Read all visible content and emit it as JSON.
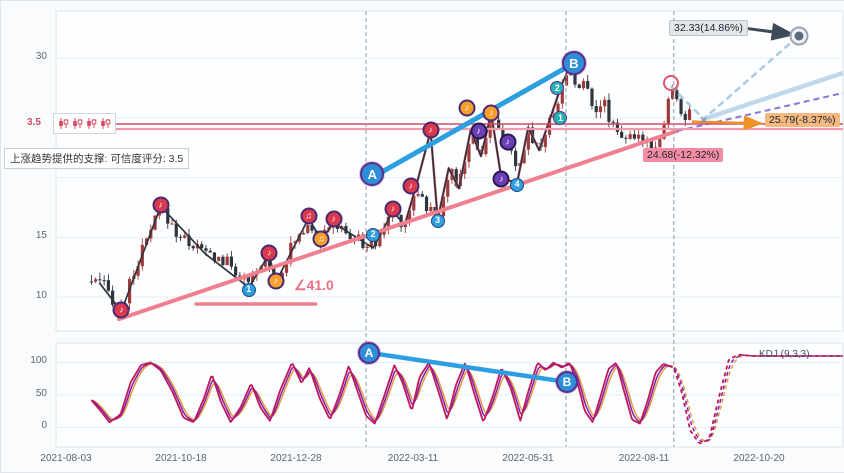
{
  "axes": {
    "main_yticks": [
      "30",
      "15",
      "10"
    ],
    "kdj_yticks": [
      "100",
      "50",
      "0"
    ],
    "dates": [
      "2021-08-03",
      "2021-10-18",
      "2021-12-28",
      "2022-03-11",
      "2022-05-31",
      "2022-08-11",
      "2022-10-20"
    ]
  },
  "annotations": {
    "support_note": "上涨趋势提供的支撑: 可信度评分: 3.5",
    "score_badge": "3.5",
    "angle_label": "∠41.0",
    "kdj_label": "KDJ (9,3,3)",
    "pattern_icons": [
      "candle-pattern",
      "candle-pattern",
      "candle-pattern",
      "candle-pattern"
    ],
    "callouts": [
      {
        "text": "32.33(14.86%)",
        "kind": "target-up",
        "bg": "#e3e7ea"
      },
      {
        "text": "25.79(-8.37%)",
        "kind": "target-mid",
        "bg": "#f5b97f"
      },
      {
        "text": "24.68(-12.32%)",
        "kind": "target-down",
        "bg": "#f48ca4"
      }
    ]
  },
  "chart_data": {
    "type": "candlestick+kdj",
    "x_axis": {
      "labels": [
        "2021-08-03",
        "2021-10-18",
        "2021-12-28",
        "2022-03-11",
        "2022-05-31",
        "2022-08-11",
        "2022-10-20"
      ]
    },
    "vguides": {
      "fracs": [
        0.394,
        0.648,
        0.785
      ]
    },
    "main": {
      "ylim": [
        7.15,
        33.97
      ],
      "yticks": [
        10,
        15,
        30
      ],
      "grid": [
        10,
        15,
        20,
        25,
        30
      ],
      "resistance_level": 24.4,
      "support_score": 3.5,
      "price_targets": {
        "up": 32.33,
        "mid": 25.79,
        "down": 24.68
      },
      "candles": {
        "count": 142,
        "start": 0.045,
        "end": 0.805,
        "wiggle": 0.55,
        "up_color": "#9e3a3a",
        "down_color": "#2f353e"
      },
      "price_path": [
        [
          0.045,
          11.3
        ],
        [
          0.06,
          11.0
        ],
        [
          0.083,
          8.8
        ],
        [
          0.1,
          12.3
        ],
        [
          0.133,
          17.5
        ],
        [
          0.155,
          15.2
        ],
        [
          0.19,
          13.7
        ],
        [
          0.22,
          12.8
        ],
        [
          0.245,
          10.9
        ],
        [
          0.268,
          13.4
        ],
        [
          0.28,
          11.4
        ],
        [
          0.3,
          14.3
        ],
        [
          0.321,
          16.4
        ],
        [
          0.337,
          14.8
        ],
        [
          0.353,
          16.1
        ],
        [
          0.375,
          15.0
        ],
        [
          0.403,
          14.2
        ],
        [
          0.415,
          15.6
        ],
        [
          0.428,
          17.1
        ],
        [
          0.443,
          16.1
        ],
        [
          0.458,
          19.3
        ],
        [
          0.47,
          17.6
        ],
        [
          0.485,
          16.6
        ],
        [
          0.499,
          20.6
        ],
        [
          0.512,
          19.3
        ],
        [
          0.527,
          23.8
        ],
        [
          0.54,
          22.0
        ],
        [
          0.553,
          25.2
        ],
        [
          0.563,
          23.6
        ],
        [
          0.574,
          22.8
        ],
        [
          0.586,
          20.0
        ],
        [
          0.6,
          24.0
        ],
        [
          0.614,
          22.5
        ],
        [
          0.628,
          24.8
        ],
        [
          0.64,
          27.0
        ],
        [
          0.655,
          29.6
        ],
        [
          0.663,
          27.2
        ],
        [
          0.673,
          28.0
        ],
        [
          0.685,
          25.8
        ],
        [
          0.695,
          26.4
        ],
        [
          0.705,
          24.8
        ],
        [
          0.718,
          23.7
        ],
        [
          0.733,
          23.0
        ],
        [
          0.748,
          23.4
        ],
        [
          0.758,
          22.7
        ],
        [
          0.768,
          23.3
        ],
        [
          0.775,
          25.3
        ],
        [
          0.781,
          27.8
        ],
        [
          0.79,
          26.0
        ],
        [
          0.8,
          25.0
        ],
        [
          0.805,
          25.4
        ]
      ],
      "zigzag": {
        "stroke": "#2e333c",
        "w": 1.7,
        "pts": [
          [
            0.055,
            11.2
          ],
          [
            0.083,
            8.8
          ],
          [
            0.133,
            17.6
          ],
          [
            0.19,
            13.6
          ],
          [
            0.245,
            10.8
          ],
          [
            0.271,
            13.6
          ],
          [
            0.279,
            11.2
          ],
          [
            0.321,
            16.6
          ],
          [
            0.337,
            14.8
          ],
          [
            0.353,
            16.2
          ],
          [
            0.403,
            14.1
          ],
          [
            0.428,
            17.2
          ],
          [
            0.443,
            16.0
          ],
          [
            0.458,
            19.4
          ],
          [
            0.476,
            23.9
          ],
          [
            0.485,
            16.5
          ],
          [
            0.499,
            20.8
          ],
          [
            0.512,
            19.1
          ],
          [
            0.527,
            24.0
          ],
          [
            0.54,
            21.8
          ],
          [
            0.553,
            25.4
          ],
          [
            0.566,
            19.9
          ],
          [
            0.586,
            19.6
          ],
          [
            0.6,
            24.2
          ],
          [
            0.614,
            22.3
          ],
          [
            0.64,
            27.3
          ],
          [
            0.655,
            29.8
          ]
        ]
      },
      "pink_zigzag": {
        "stroke": "#ee7187",
        "w": 2.5,
        "pts": [
          [
            0.443,
            16.0
          ],
          [
            0.458,
            19.4
          ],
          [
            0.476,
            23.9
          ],
          [
            0.485,
            16.5
          ],
          [
            0.499,
            20.8
          ],
          [
            0.512,
            19.1
          ],
          [
            0.527,
            24.0
          ],
          [
            0.54,
            21.8
          ],
          [
            0.553,
            25.4
          ],
          [
            0.566,
            19.9
          ],
          [
            0.586,
            19.6
          ],
          [
            0.6,
            24.2
          ],
          [
            0.614,
            22.3
          ],
          [
            0.64,
            27.3
          ]
        ]
      },
      "overlays": [
        {
          "name": "support-trendline",
          "pts": [
            [
              0.08,
              8.15
            ],
            [
              0.789,
              23.91
            ]
          ],
          "stroke": "#f0808f",
          "w": 4,
          "cap": "round"
        },
        {
          "name": "support-extension-dashed",
          "pts": [
            [
              0.789,
              23.91
            ],
            [
              1.0,
              27.1
            ]
          ],
          "stroke": "#8678d8",
          "w": 2,
          "dash": "6 4"
        },
        {
          "name": "resistance-line-upper",
          "pts": [
            [
              0.0,
              24.5
            ],
            [
              1.0,
              24.5
            ]
          ],
          "stroke": "#d84a63",
          "w": 1.4
        },
        {
          "name": "resistance-line-lower",
          "pts": [
            [
              0.0,
              24.08
            ],
            [
              1.0,
              24.08
            ]
          ],
          "stroke": "#f29aab",
          "w": 2.2
        },
        {
          "name": "angle-baseline",
          "pts": [
            [
              0.178,
              9.41
            ],
            [
              0.33,
              9.41
            ]
          ],
          "stroke": "#f0808f",
          "w": 3.5,
          "cap": "round"
        },
        {
          "name": "ab-trendline",
          "pts": [
            [
              0.403,
              20.06
            ],
            [
              0.658,
              29.6
            ]
          ],
          "stroke": "#2b9fe0",
          "w": 5,
          "cap": "round"
        },
        {
          "name": "projection-zigzag-dashed",
          "pts": [
            [
              0.781,
              27.68
            ],
            [
              0.823,
              24.92
            ],
            [
              0.944,
              31.9
            ]
          ],
          "stroke": "#a9cce6",
          "w": 2.5,
          "dash": "7 4"
        },
        {
          "name": "projection-channel-thick",
          "pts": [
            [
              0.823,
              24.92
            ],
            [
              1.0,
              28.77
            ]
          ],
          "stroke": "#bfd8ec",
          "w": 4.5
        },
        {
          "name": "target-mid-arrow",
          "pts": [
            [
              0.808,
              24.7
            ],
            [
              0.896,
              24.55
            ]
          ],
          "stroke": "#ef9227",
          "w": 2.5,
          "arrow": true
        },
        {
          "name": "target-up-arrow",
          "pts": [
            [
              0.873,
              32.55
            ],
            [
              0.936,
              32.0
            ]
          ],
          "stroke": "#3d4a57",
          "w": 3,
          "arrow": true
        }
      ],
      "markers": [
        {
          "f": 0.083,
          "p": 8.9,
          "kind": "note-red",
          "glyph": "♪",
          "name": "pivot-low-1"
        },
        {
          "f": 0.133,
          "p": 17.7,
          "kind": "note-red",
          "glyph": "♪",
          "name": "pivot-high-1"
        },
        {
          "f": 0.245,
          "p": 10.6,
          "kind": "num-blue",
          "glyph": "1",
          "name": "wave-point-1"
        },
        {
          "f": 0.271,
          "p": 13.7,
          "kind": "note-red",
          "glyph": "♪",
          "name": "pivot-high-2"
        },
        {
          "f": 0.279,
          "p": 11.3,
          "kind": "note-orange",
          "glyph": "♪",
          "name": "pivot-low-2"
        },
        {
          "f": 0.321,
          "p": 16.8,
          "kind": "note-red",
          "glyph": "♫",
          "name": "pivot-high-3"
        },
        {
          "f": 0.337,
          "p": 14.9,
          "kind": "note-orange",
          "glyph": "♫",
          "name": "pivot-low-3"
        },
        {
          "f": 0.353,
          "p": 16.5,
          "kind": "note-red",
          "glyph": "♪",
          "name": "pivot-high-4"
        },
        {
          "f": 0.403,
          "p": 15.2,
          "kind": "num-blue",
          "glyph": "2",
          "name": "wave-point-2"
        },
        {
          "f": 0.402,
          "p": 20.3,
          "kind": "big-blue",
          "glyph": "A",
          "name": "wave-label-a"
        },
        {
          "f": 0.428,
          "p": 17.4,
          "kind": "note-red",
          "glyph": "♪",
          "name": "pivot-high-5"
        },
        {
          "f": 0.451,
          "p": 19.3,
          "kind": "note-red",
          "glyph": "♪",
          "name": "pivot-high-6"
        },
        {
          "f": 0.476,
          "p": 24.0,
          "kind": "note-red",
          "glyph": "♪",
          "name": "pivot-high-7"
        },
        {
          "f": 0.485,
          "p": 16.4,
          "kind": "num-blue",
          "glyph": "3",
          "name": "wave-point-3"
        },
        {
          "f": 0.522,
          "p": 25.8,
          "kind": "note-orange",
          "glyph": "♪",
          "name": "pivot-high-8"
        },
        {
          "f": 0.537,
          "p": 23.9,
          "kind": "note-purple",
          "glyph": "♪",
          "name": "pivot-mid-1"
        },
        {
          "f": 0.553,
          "p": 25.4,
          "kind": "note-orange",
          "glyph": "♪",
          "name": "pivot-high-9"
        },
        {
          "f": 0.566,
          "p": 19.9,
          "kind": "note-purple",
          "glyph": "♪",
          "name": "pivot-low-4"
        },
        {
          "f": 0.574,
          "p": 23.0,
          "kind": "note-purple",
          "glyph": "♪",
          "name": "pivot-mid-2"
        },
        {
          "f": 0.586,
          "p": 19.4,
          "kind": "num-blue",
          "glyph": "4",
          "name": "wave-point-4"
        },
        {
          "f": 0.637,
          "p": 27.5,
          "kind": "num-teal",
          "glyph": "2",
          "name": "sub-wave-2"
        },
        {
          "f": 0.641,
          "p": 25.0,
          "kind": "num-teal",
          "glyph": "1",
          "name": "sub-wave-1"
        },
        {
          "f": 0.658,
          "p": 29.6,
          "kind": "big-blue",
          "glyph": "B",
          "name": "wave-label-b"
        },
        {
          "f": 0.781,
          "p": 27.9,
          "kind": "ring-red",
          "glyph": "",
          "name": "pivot-highlight-ring"
        },
        {
          "f": 0.823,
          "p": 24.8,
          "kind": "cross",
          "glyph": "×",
          "name": "projection-origin-cross"
        },
        {
          "f": 0.944,
          "p": 31.9,
          "kind": "target",
          "glyph": "",
          "name": "price-target-marker"
        }
      ]
    },
    "kdj": {
      "ylim": [
        -30,
        130
      ],
      "yticks": [
        0,
        50,
        100
      ],
      "grid": [
        0,
        50,
        100
      ],
      "forecast_start": 0.785,
      "j_keypoints": [
        [
          0.045,
          42
        ],
        [
          0.055,
          28
        ],
        [
          0.068,
          8
        ],
        [
          0.082,
          20
        ],
        [
          0.095,
          70
        ],
        [
          0.108,
          96
        ],
        [
          0.12,
          100
        ],
        [
          0.133,
          88
        ],
        [
          0.148,
          55
        ],
        [
          0.162,
          15
        ],
        [
          0.175,
          8
        ],
        [
          0.188,
          45
        ],
        [
          0.198,
          82
        ],
        [
          0.21,
          38
        ],
        [
          0.222,
          8
        ],
        [
          0.235,
          32
        ],
        [
          0.248,
          68
        ],
        [
          0.26,
          30
        ],
        [
          0.272,
          10
        ],
        [
          0.285,
          58
        ],
        [
          0.3,
          100
        ],
        [
          0.312,
          68
        ],
        [
          0.322,
          92
        ],
        [
          0.335,
          45
        ],
        [
          0.348,
          12
        ],
        [
          0.36,
          50
        ],
        [
          0.372,
          95
        ],
        [
          0.382,
          60
        ],
        [
          0.394,
          18
        ],
        [
          0.405,
          6
        ],
        [
          0.418,
          52
        ],
        [
          0.43,
          96
        ],
        [
          0.44,
          70
        ],
        [
          0.452,
          25
        ],
        [
          0.462,
          78
        ],
        [
          0.474,
          100
        ],
        [
          0.486,
          55
        ],
        [
          0.497,
          12
        ],
        [
          0.508,
          65
        ],
        [
          0.52,
          100
        ],
        [
          0.532,
          50
        ],
        [
          0.543,
          8
        ],
        [
          0.555,
          48
        ],
        [
          0.566,
          92
        ],
        [
          0.578,
          60
        ],
        [
          0.59,
          10
        ],
        [
          0.6,
          55
        ],
        [
          0.612,
          100
        ],
        [
          0.622,
          88
        ],
        [
          0.632,
          100
        ],
        [
          0.643,
          92
        ],
        [
          0.652,
          100
        ],
        [
          0.662,
          72
        ],
        [
          0.672,
          25
        ],
        [
          0.682,
          8
        ],
        [
          0.692,
          48
        ],
        [
          0.702,
          90
        ],
        [
          0.712,
          100
        ],
        [
          0.722,
          55
        ],
        [
          0.732,
          12
        ],
        [
          0.742,
          6
        ],
        [
          0.752,
          42
        ],
        [
          0.762,
          85
        ],
        [
          0.772,
          98
        ],
        [
          0.785,
          92
        ],
        [
          0.795,
          55
        ],
        [
          0.806,
          -5
        ],
        [
          0.818,
          -25
        ],
        [
          0.83,
          -18
        ],
        [
          0.842,
          45
        ],
        [
          0.855,
          105
        ],
        [
          0.868,
          112
        ],
        [
          0.885,
          110
        ],
        [
          1.0,
          110
        ]
      ],
      "line_colors": {
        "j": "#c2185b",
        "k": "#7e22a8",
        "d": "#e8963c"
      },
      "overlays": [
        {
          "name": "kdj-ab-trendline",
          "pts": [
            [
              0.3977,
              115
            ],
            [
              0.6493,
              70
            ]
          ],
          "stroke": "#2b9fe0",
          "w": 4.5,
          "cap": "round"
        }
      ],
      "markers": [
        {
          "f": 0.3977,
          "v": 115,
          "glyph": "A",
          "name": "kdj-wave-a"
        },
        {
          "f": 0.6493,
          "v": 70,
          "glyph": "B",
          "name": "kdj-wave-b"
        }
      ]
    }
  }
}
